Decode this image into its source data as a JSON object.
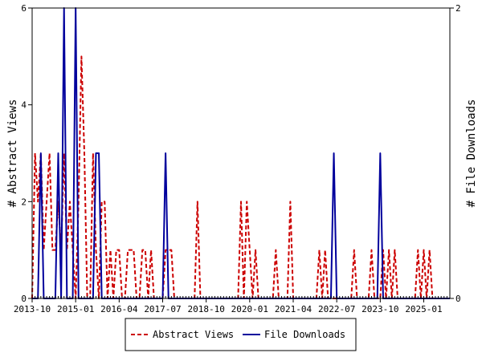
{
  "chart_data": {
    "type": "line",
    "title": "",
    "xlabel": "",
    "ylabel": "# Abstract Views",
    "y2label": "# File Downloads",
    "x_ticks": [
      "2013-10",
      "2015-01",
      "2016-04",
      "2017-07",
      "2018-10",
      "2020-01",
      "2021-04",
      "2022-07",
      "2023-10",
      "2025-01"
    ],
    "x_range": [
      "2013-10",
      "2025-10"
    ],
    "ylim": [
      0,
      6
    ],
    "y_ticks": [
      "0",
      "2",
      "4",
      "6"
    ],
    "y2lim": [
      0,
      2
    ],
    "y2_ticks": [
      "0",
      "2"
    ],
    "legend_position": "bottom",
    "series": [
      {
        "name": "Abstract Views",
        "axis": "left",
        "color": "#cc0000",
        "dash": "dashed",
        "points": [
          [
            "2013-10",
            0
          ],
          [
            "2013-11",
            3
          ],
          [
            "2013-12",
            2
          ],
          [
            "2014-01",
            3
          ],
          [
            "2014-02",
            1
          ],
          [
            "2014-03",
            2
          ],
          [
            "2014-04",
            3
          ],
          [
            "2014-05",
            1
          ],
          [
            "2014-06",
            1
          ],
          [
            "2014-07",
            2
          ],
          [
            "2014-08",
            1
          ],
          [
            "2014-09",
            3
          ],
          [
            "2014-10",
            1
          ],
          [
            "2014-11",
            2
          ],
          [
            "2014-12",
            1
          ],
          [
            "2015-01",
            0
          ],
          [
            "2015-02",
            2
          ],
          [
            "2015-03",
            5
          ],
          [
            "2015-04",
            3
          ],
          [
            "2015-05",
            0
          ],
          [
            "2015-06",
            0
          ],
          [
            "2015-07",
            3
          ],
          [
            "2015-08",
            1
          ],
          [
            "2015-09",
            0
          ],
          [
            "2015-10",
            2
          ],
          [
            "2015-11",
            2
          ],
          [
            "2015-12",
            0
          ],
          [
            "2016-01",
            1
          ],
          [
            "2016-02",
            0
          ],
          [
            "2016-03",
            1
          ],
          [
            "2016-04",
            1
          ],
          [
            "2016-05",
            0
          ],
          [
            "2016-06",
            0
          ],
          [
            "2016-07",
            1
          ],
          [
            "2016-08",
            1
          ],
          [
            "2016-09",
            1
          ],
          [
            "2016-10",
            0
          ],
          [
            "2016-11",
            0
          ],
          [
            "2016-12",
            1
          ],
          [
            "2017-01",
            1
          ],
          [
            "2017-02",
            0
          ],
          [
            "2017-03",
            1
          ],
          [
            "2017-04",
            0
          ],
          [
            "2017-05",
            0
          ],
          [
            "2017-06",
            0
          ],
          [
            "2017-07",
            0
          ],
          [
            "2017-08",
            1
          ],
          [
            "2017-09",
            1
          ],
          [
            "2017-10",
            1
          ],
          [
            "2017-11",
            0
          ],
          [
            "2017-12",
            0
          ],
          [
            "2018-06",
            0
          ],
          [
            "2018-07",
            2
          ],
          [
            "2018-08",
            0
          ],
          [
            "2019-09",
            0
          ],
          [
            "2019-10",
            2
          ],
          [
            "2019-11",
            0
          ],
          [
            "2019-12",
            2
          ],
          [
            "2020-01",
            1
          ],
          [
            "2020-02",
            0
          ],
          [
            "2020-03",
            1
          ],
          [
            "2020-04",
            0
          ],
          [
            "2020-09",
            0
          ],
          [
            "2020-10",
            1
          ],
          [
            "2020-11",
            0
          ],
          [
            "2021-02",
            0
          ],
          [
            "2021-03",
            2
          ],
          [
            "2021-04",
            0
          ],
          [
            "2021-12",
            0
          ],
          [
            "2022-01",
            1
          ],
          [
            "2022-02",
            0
          ],
          [
            "2022-03",
            1
          ],
          [
            "2022-04",
            0
          ],
          [
            "2022-12",
            0
          ],
          [
            "2023-01",
            1
          ],
          [
            "2023-02",
            0
          ],
          [
            "2023-06",
            0
          ],
          [
            "2023-07",
            1
          ],
          [
            "2023-08",
            0
          ],
          [
            "2023-10",
            0
          ],
          [
            "2023-11",
            1
          ],
          [
            "2023-12",
            0
          ],
          [
            "2024-01",
            1
          ],
          [
            "2024-02",
            0
          ],
          [
            "2024-03",
            1
          ],
          [
            "2024-04",
            0
          ],
          [
            "2024-10",
            0
          ],
          [
            "2024-11",
            1
          ],
          [
            "2024-12",
            0
          ],
          [
            "2025-01",
            1
          ],
          [
            "2025-02",
            0
          ],
          [
            "2025-03",
            1
          ],
          [
            "2025-04",
            0
          ],
          [
            "2025-10",
            0
          ]
        ]
      },
      {
        "name": "File Downloads",
        "axis": "right",
        "color": "#00009c",
        "dash": "solid",
        "points": [
          [
            "2013-10",
            0
          ],
          [
            "2013-12",
            0
          ],
          [
            "2014-01",
            1
          ],
          [
            "2014-02",
            0
          ],
          [
            "2014-06",
            0
          ],
          [
            "2014-07",
            1
          ],
          [
            "2014-08",
            0
          ],
          [
            "2014-09",
            2
          ],
          [
            "2014-10",
            0
          ],
          [
            "2014-12",
            0
          ],
          [
            "2015-01",
            2
          ],
          [
            "2015-02",
            0
          ],
          [
            "2015-07",
            0
          ],
          [
            "2015-08",
            1
          ],
          [
            "2015-09",
            1
          ],
          [
            "2015-10",
            0
          ],
          [
            "2017-07",
            0
          ],
          [
            "2017-08",
            1
          ],
          [
            "2017-09",
            0
          ],
          [
            "2022-05",
            0
          ],
          [
            "2022-06",
            1
          ],
          [
            "2022-07",
            0
          ],
          [
            "2023-09",
            0
          ],
          [
            "2023-10",
            1
          ],
          [
            "2023-11",
            0
          ],
          [
            "2025-10",
            0
          ]
        ]
      }
    ]
  }
}
